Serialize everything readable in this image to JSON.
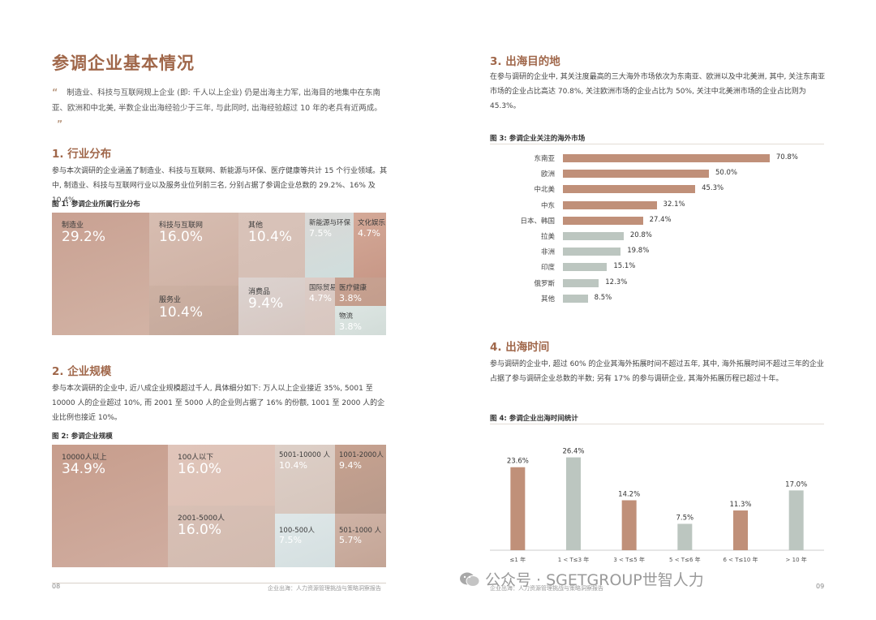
{
  "left": {
    "title": "参调企业基本情况",
    "quote_open": "“",
    "quote_text": "制造业、科技与互联网规上企业 (即: 千人以上企业) 仍是出海主力军, 出海目的地集中在东南亚、欧洲和中北美, 半数企业出海经验少于三年, 与此同时, 出海经验超过 10 年的老兵有近两成。",
    "quote_close": "”",
    "sec1_title": "1. 行业分布",
    "sec1_text": "参与本次调研的企业涵盖了制造业、科技与互联网、新能源与环保、医疗健康等共计 15 个行业领域。其中, 制造业、科技与互联网行业以及服务业位列前三名, 分别占据了参调企业总数的 29.2%、16% 及 10.4%。",
    "fig1_title": "图 1: 参调企业所属行业分布",
    "fig1_items": [
      {
        "name": "制造业",
        "value": "29.2%"
      },
      {
        "name": "科技与互联网",
        "value": "16.0%"
      },
      {
        "name": "服务业",
        "value": "10.4%"
      },
      {
        "name": "其他",
        "value": "10.4%"
      },
      {
        "name": "消费品",
        "value": "9.4%"
      },
      {
        "name": "新能源与环保",
        "value": "7.5%"
      },
      {
        "name": "文化娱乐",
        "value": "4.7%"
      },
      {
        "name": "国际贸易",
        "value": "4.7%"
      },
      {
        "name": "医疗健康",
        "value": "3.8%"
      },
      {
        "name": "物流",
        "value": "3.8%"
      }
    ],
    "sec2_title": "2. 企业规模",
    "sec2_text": "参与本次调研的企业中, 近八成企业规模超过千人, 具体细分如下: 万人以上企业接近 35%, 5001 至 10000 人的企业超过 10%, 而 2001 至 5000 人的企业则占据了 16% 的份额, 1001 至 2000 人的企业比例也接近 10%。",
    "fig2_title": "图 2: 参调企业规模",
    "fig2_items": [
      {
        "name": "10000人以上",
        "value": "34.9%"
      },
      {
        "name": "100人以下",
        "value": "16.0%"
      },
      {
        "name": "2001-5000人",
        "value": "16.0%"
      },
      {
        "name": "5001-10000 人",
        "value": "10.4%"
      },
      {
        "name": "1001-2000人",
        "value": "9.4%"
      },
      {
        "name": "100-500人",
        "value": "7.5%"
      },
      {
        "name": "501-1000 人",
        "value": "5.7%"
      }
    ],
    "page_num": "08",
    "footer_text": "企业出海：人力资源管理挑战与策略洞察报告"
  },
  "right": {
    "sec3_title": "3. 出海目的地",
    "sec3_text": "在参与调研的企业中, 其关注度最高的三大海外市场依次为东南亚、欧洲以及中北美洲, 其中, 关注东南亚市场的企业占比高达 70.8%, 关注欧洲市场的企业占比为 50%, 关注中北美洲市场的企业占比则为 45.3%。",
    "fig3_title": "图 3: 参调企业关注的海外市场",
    "sec4_title": "4. 出海时间",
    "sec4_text": "参与调研的企业中, 超过 60% 的企业其海外拓展时间不超过五年, 其中, 海外拓展时间不超过三年的企业占据了参与调研企业总数的半数; 另有 17% 的参与调研企业, 其海外拓展历程已超过十年。",
    "fig4_title": "图 4: 参调企业出海时间统计",
    "footer_text": "企业出海：人力资源管理挑战与策略洞察报告",
    "page_num": "09",
    "watermark_text": "公众号 · SGETGROUP世智人力"
  },
  "colors": {
    "accent": "#a0674a",
    "bar_brown": "#c09079",
    "bar_gray": "#bcc6c0"
  },
  "chart_data": [
    {
      "type": "bar",
      "orientation": "horizontal",
      "title": "图 3: 参调企业关注的海外市场",
      "categories": [
        "东南亚",
        "欧洲",
        "中北美",
        "中东",
        "日本、韩国",
        "拉美",
        "非洲",
        "印度",
        "俄罗斯",
        "其他"
      ],
      "values": [
        70.8,
        50.0,
        45.3,
        32.1,
        27.4,
        20.8,
        19.8,
        15.1,
        12.3,
        8.5
      ],
      "value_labels": [
        "70.8%",
        "50.0%",
        "45.3%",
        "32.1%",
        "27.4%",
        "20.8%",
        "19.8%",
        "15.1%",
        "12.3%",
        "8.5%"
      ],
      "xlim": [
        0,
        75
      ],
      "grid": false
    },
    {
      "type": "bar",
      "title": "图 4: 参调企业出海时间统计",
      "categories": [
        "≤1 年",
        "1 < T≤3 年",
        "3 < T≤5 年",
        "5 < T≤6 年",
        "6 < T≤10 年",
        "> 10 年"
      ],
      "values": [
        23.6,
        26.4,
        14.2,
        7.5,
        11.3,
        17.0
      ],
      "value_labels": [
        "23.6%",
        "26.4%",
        "14.2%",
        "7.5%",
        "11.3%",
        "17.0%"
      ],
      "ylim": [
        0,
        30
      ],
      "grid": false
    }
  ]
}
